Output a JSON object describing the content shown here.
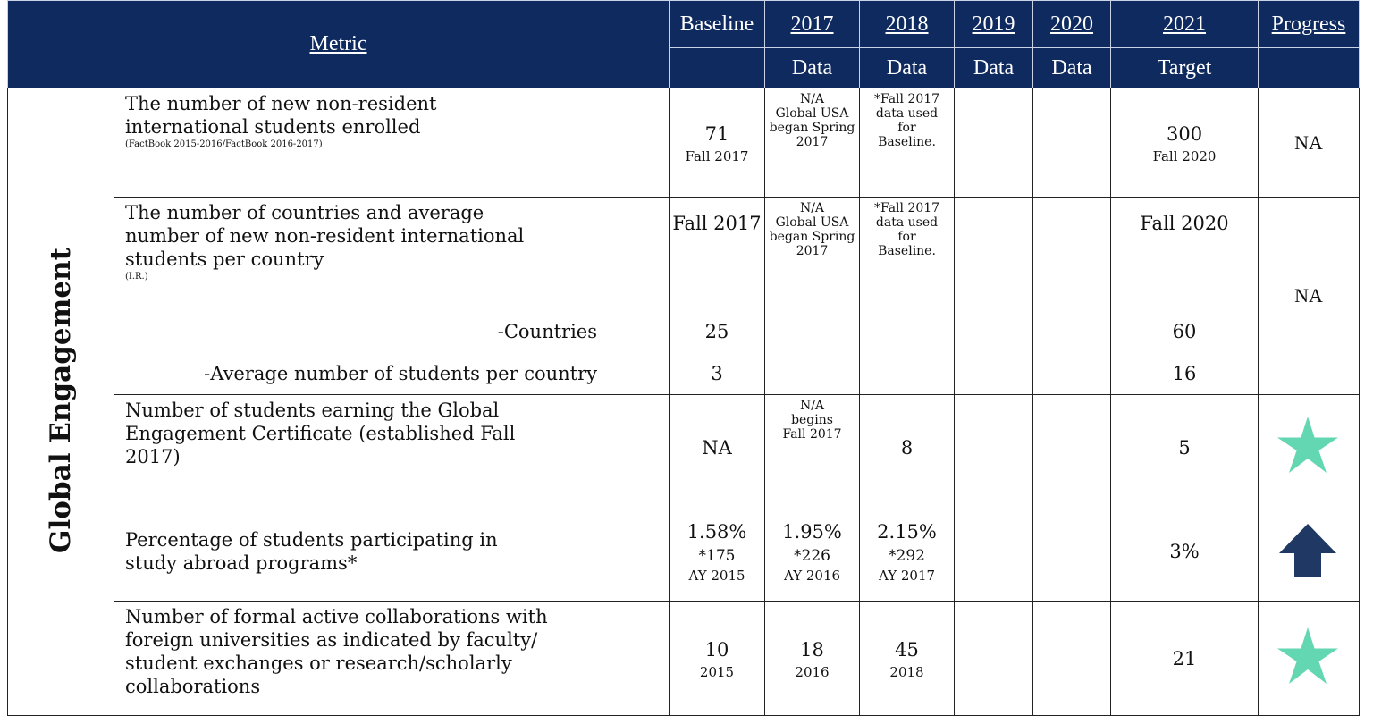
{
  "header": {
    "metric": "Metric",
    "baseline": "Baseline",
    "years": [
      {
        "year": "2017",
        "sub": "Data"
      },
      {
        "year": "2018",
        "sub": "Data"
      },
      {
        "year": "2019",
        "sub": "Data"
      },
      {
        "year": "2020",
        "sub": "Data"
      },
      {
        "year": "2021",
        "sub": "Target"
      }
    ],
    "progress": "Progress"
  },
  "section": "Global Engagement",
  "rows": [
    {
      "metric": [
        "The number of new non-resident",
        "international  students enrolled"
      ],
      "source": "(FactBook 2015-2016/FactBook 2016-2017)",
      "baseline": [
        "71",
        "Fall 2017"
      ],
      "y2017": [
        "N/A",
        "Global USA",
        "began Spring",
        "2017"
      ],
      "y2018": [
        "*Fall 2017",
        "data used",
        "for",
        "Baseline."
      ],
      "target": [
        "300",
        "Fall 2020"
      ],
      "progress": "NA"
    },
    {
      "metric": [
        "The number of countries and average",
        "number of new non-resident international",
        "students per country"
      ],
      "source": "(I.R.)",
      "baseline": [
        "Fall 2017"
      ],
      "y2017": [
        "N/A",
        "Global USA",
        "began Spring",
        "2017"
      ],
      "y2018": [
        "*Fall 2017",
        "data used",
        "for",
        "Baseline."
      ],
      "target": [
        "Fall 2020"
      ],
      "progress": "NA",
      "sub": [
        {
          "label": "-Countries",
          "baseline": "25",
          "target": "60"
        },
        {
          "label": "-Average number of students per country",
          "baseline": "3",
          "target": "16"
        }
      ]
    },
    {
      "metric": [
        "Number of students earning the Global",
        "Engagement Certificate (established Fall",
        "2017)"
      ],
      "baseline": [
        "NA"
      ],
      "y2017": [
        "N/A",
        "begins",
        "Fall 2017"
      ],
      "y2018": [
        "8"
      ],
      "target": [
        "5"
      ]
    },
    {
      "metric": [
        "Percentage of students participating in",
        "study abroad programs*"
      ],
      "baseline": [
        "1.58%",
        "*175",
        "AY 2015"
      ],
      "y2017": [
        "1.95%",
        "*226",
        "AY 2016"
      ],
      "y2018": [
        "2.15%",
        "*292",
        "AY 2017"
      ],
      "target": [
        "3%"
      ]
    },
    {
      "metric": [
        "Number of formal active collaborations with",
        "foreign  universities as indicated by faculty/",
        "student  exchanges or research/scholarly",
        "collaborations"
      ],
      "baseline": [
        "10",
        "2015"
      ],
      "y2017": [
        "18",
        "2016"
      ],
      "y2018": [
        "45",
        "2018"
      ],
      "target": [
        "21"
      ]
    }
  ]
}
